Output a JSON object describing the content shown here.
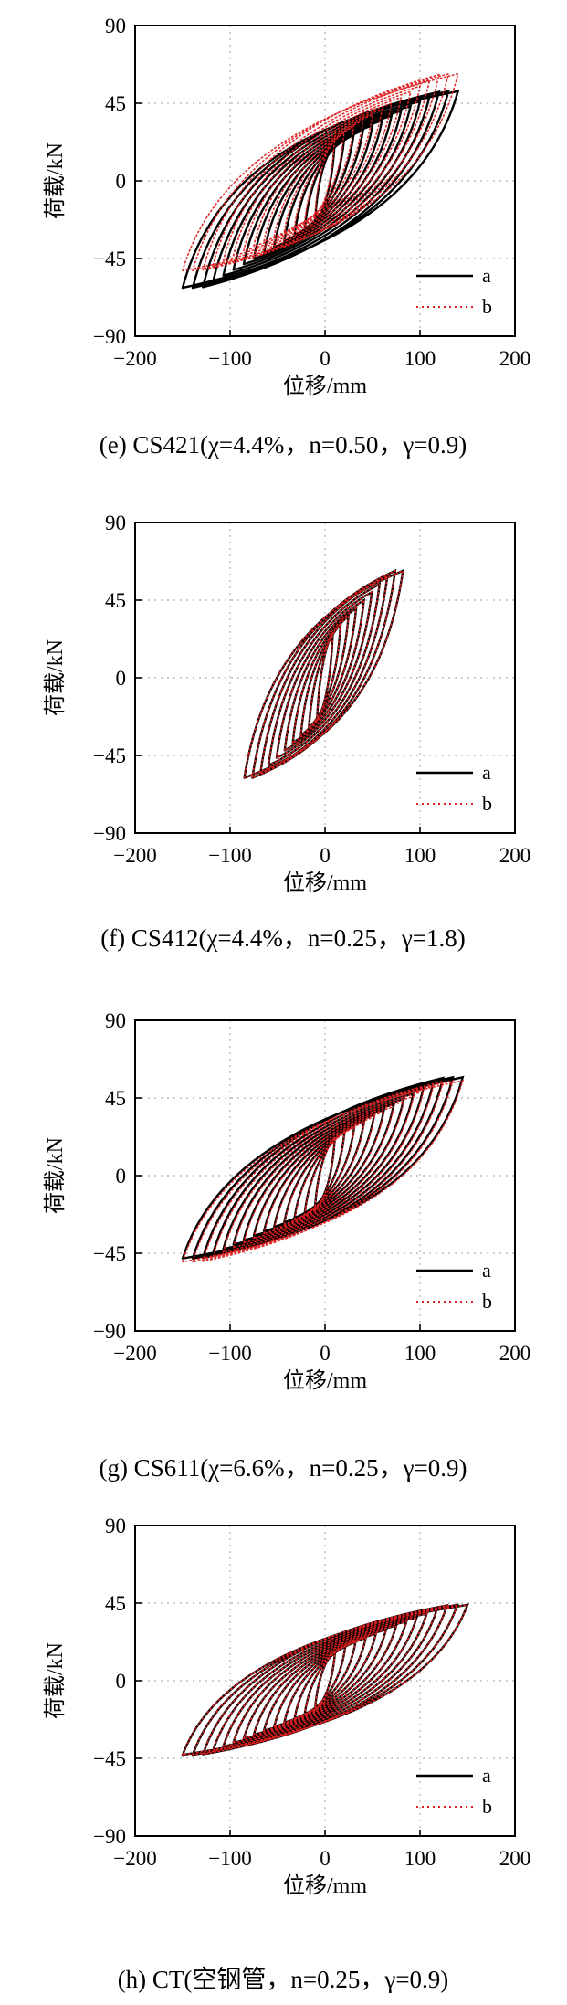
{
  "panels": [
    {
      "caption": "(e) CS421(χ=4.4%，n=0.50，γ=0.9)",
      "chart_data": {
        "type": "line",
        "xlabel": "位移/mm",
        "ylabel": "荷载/kN",
        "xlim": [
          -200,
          200
        ],
        "ylim": [
          -90,
          90
        ],
        "xticks": [
          -200,
          -100,
          0,
          100,
          200
        ],
        "yticks": [
          -90,
          -45,
          0,
          45,
          90
        ],
        "grid": true,
        "legend_position": "bottom-right",
        "series": [
          {
            "name": "a",
            "style": "solid",
            "color": "#000000",
            "peak_load": 52,
            "tip_disp": 140,
            "valley_load": -62,
            "valley_disp": -150,
            "loop_count": 14
          },
          {
            "name": "b",
            "style": "dotted",
            "color": "#e02020",
            "peak_load": 62,
            "tip_disp": 140,
            "valley_load": -52,
            "valley_disp": -150,
            "loop_count": 14
          }
        ]
      }
    },
    {
      "caption": "(f) CS412(χ=4.4%，n=0.25，γ=1.8)",
      "chart_data": {
        "type": "line",
        "xlabel": "位移/mm",
        "ylabel": "荷载/kN",
        "xlim": [
          -200,
          200
        ],
        "ylim": [
          -90,
          90
        ],
        "xticks": [
          -200,
          -100,
          0,
          100,
          200
        ],
        "yticks": [
          -90,
          -45,
          0,
          45,
          90
        ],
        "grid": true,
        "legend_position": "bottom-right",
        "series": [
          {
            "name": "a",
            "style": "solid",
            "color": "#000000",
            "peak_load": 62,
            "tip_disp": 82,
            "valley_load": -58,
            "valley_disp": -85,
            "loop_count": 10
          },
          {
            "name": "b",
            "style": "dotted",
            "color": "#e02020",
            "peak_load": 62,
            "tip_disp": 82,
            "valley_load": -58,
            "valley_disp": -85,
            "loop_count": 10
          }
        ]
      }
    },
    {
      "caption": "(g) CS611(χ=6.6%，n=0.25，γ=0.9)",
      "chart_data": {
        "type": "line",
        "xlabel": "位移/mm",
        "ylabel": "荷载/kN",
        "xlim": [
          -200,
          200
        ],
        "ylim": [
          -90,
          90
        ],
        "xticks": [
          -200,
          -100,
          0,
          100,
          200
        ],
        "yticks": [
          -90,
          -45,
          0,
          45,
          90
        ],
        "grid": true,
        "legend_position": "bottom-right",
        "series": [
          {
            "name": "a",
            "style": "solid",
            "color": "#000000",
            "peak_load": 57,
            "tip_disp": 145,
            "valley_load": -48,
            "valley_disp": -150,
            "loop_count": 14
          },
          {
            "name": "b",
            "style": "dotted",
            "color": "#e02020",
            "peak_load": 55,
            "tip_disp": 145,
            "valley_load": -50,
            "valley_disp": -150,
            "loop_count": 14
          }
        ]
      }
    },
    {
      "caption": "(h) CT(空钢管，n=0.25，γ=0.9)",
      "chart_data": {
        "type": "line",
        "xlabel": "位移/mm",
        "ylabel": "荷载/kN",
        "xlim": [
          -200,
          200
        ],
        "ylim": [
          -90,
          90
        ],
        "xticks": [
          -200,
          -100,
          0,
          100,
          200
        ],
        "yticks": [
          -90,
          -45,
          0,
          45,
          90
        ],
        "grid": true,
        "legend_position": "bottom-right",
        "series": [
          {
            "name": "a",
            "style": "solid",
            "color": "#000000",
            "peak_load": 44,
            "tip_disp": 150,
            "valley_load": -43,
            "valley_disp": -150,
            "loop_count": 14
          },
          {
            "name": "b",
            "style": "dotted",
            "color": "#e02020",
            "peak_load": 44,
            "tip_disp": 150,
            "valley_load": -43,
            "valley_disp": -150,
            "loop_count": 14
          }
        ]
      }
    }
  ]
}
